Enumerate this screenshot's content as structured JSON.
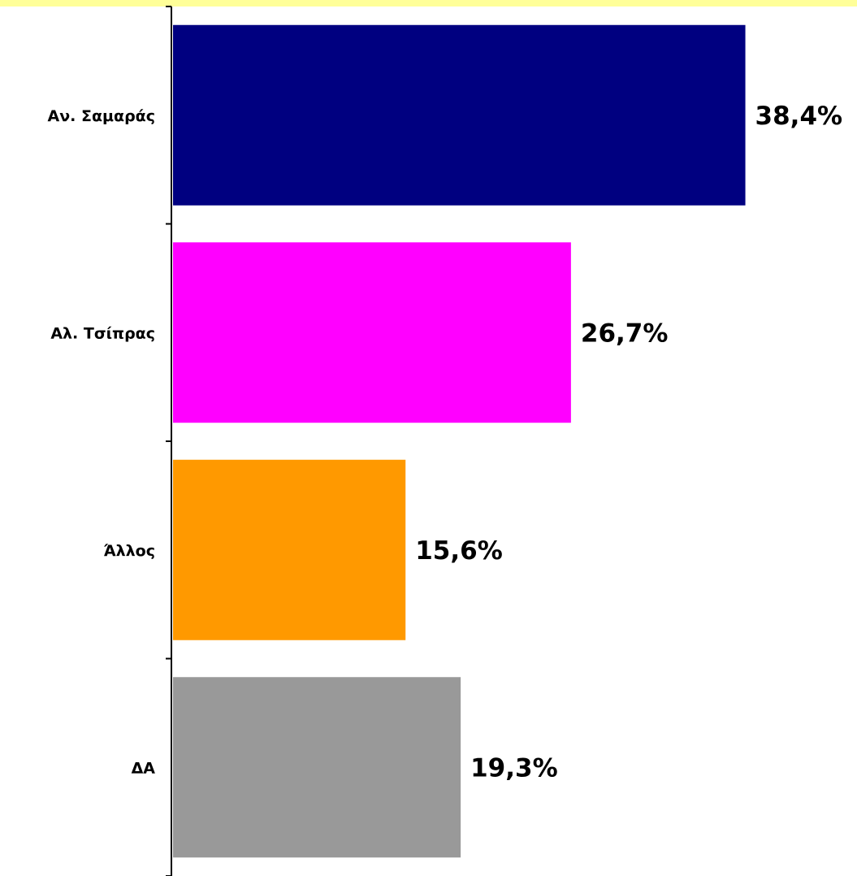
{
  "chart_data": {
    "type": "bar",
    "orientation": "horizontal",
    "categories": [
      "Αν. Σαμαράς",
      "Αλ. Τσίπρας",
      "Άλλος",
      "ΔΑ"
    ],
    "values": [
      38.4,
      26.7,
      15.6,
      19.3
    ],
    "value_labels": [
      "38,4%",
      "26,7%",
      "15,6%",
      "19,3%"
    ],
    "bar_colors": [
      "#000080",
      "#ff00ff",
      "#ff9900",
      "#999999"
    ],
    "xlim": [
      0,
      46
    ],
    "grid": false,
    "legend": "none",
    "title": "",
    "xlabel": "",
    "ylabel": ""
  },
  "colors": {
    "top_band": "#ffff99",
    "axis": "#000000",
    "background": "#ffffff"
  }
}
